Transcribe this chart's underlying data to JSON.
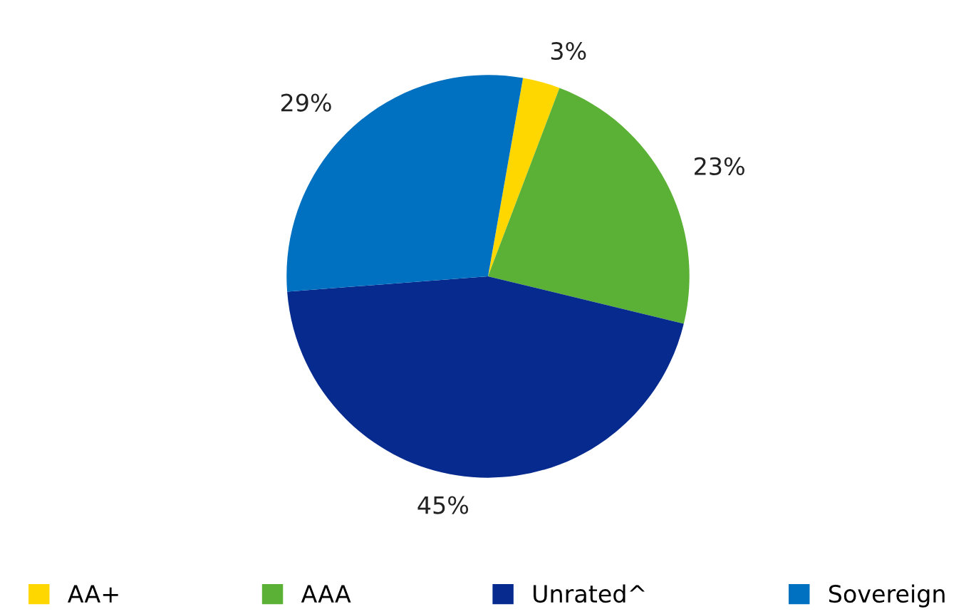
{
  "chart_data": {
    "type": "pie",
    "categories": [
      "AA+",
      "AAA",
      "Unrated^",
      "Sovereign"
    ],
    "values": [
      3,
      23,
      45,
      29
    ],
    "value_labels": [
      "3%",
      "23%",
      "45%",
      "29%"
    ],
    "colors": [
      "#ffd700",
      "#5bb135",
      "#062a8e",
      "#0070c0"
    ],
    "legend": "bottom"
  }
}
